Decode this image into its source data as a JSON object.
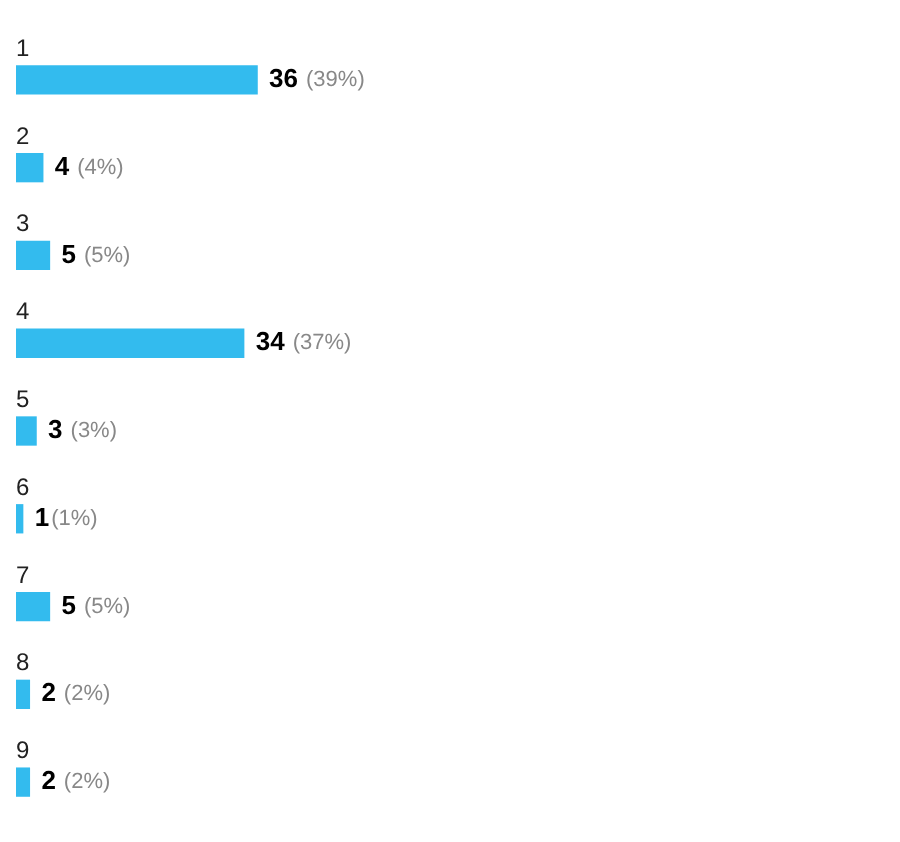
{
  "chart_data": {
    "type": "bar",
    "orientation": "horizontal",
    "categories": [
      "1",
      "2",
      "3",
      "4",
      "5",
      "6",
      "7",
      "8",
      "9"
    ],
    "values": [
      36,
      4,
      5,
      34,
      3,
      1,
      5,
      2,
      2
    ],
    "value_labels": [
      "36 (39%)",
      "4 (4%)",
      "5 (5%)",
      "34 (37%)",
      "3 (3%)",
      "1(1%)",
      "5 (5%)",
      "2 (2%)",
      "2 (2%)"
    ],
    "color": "#33bbee",
    "legend": false
  }
}
